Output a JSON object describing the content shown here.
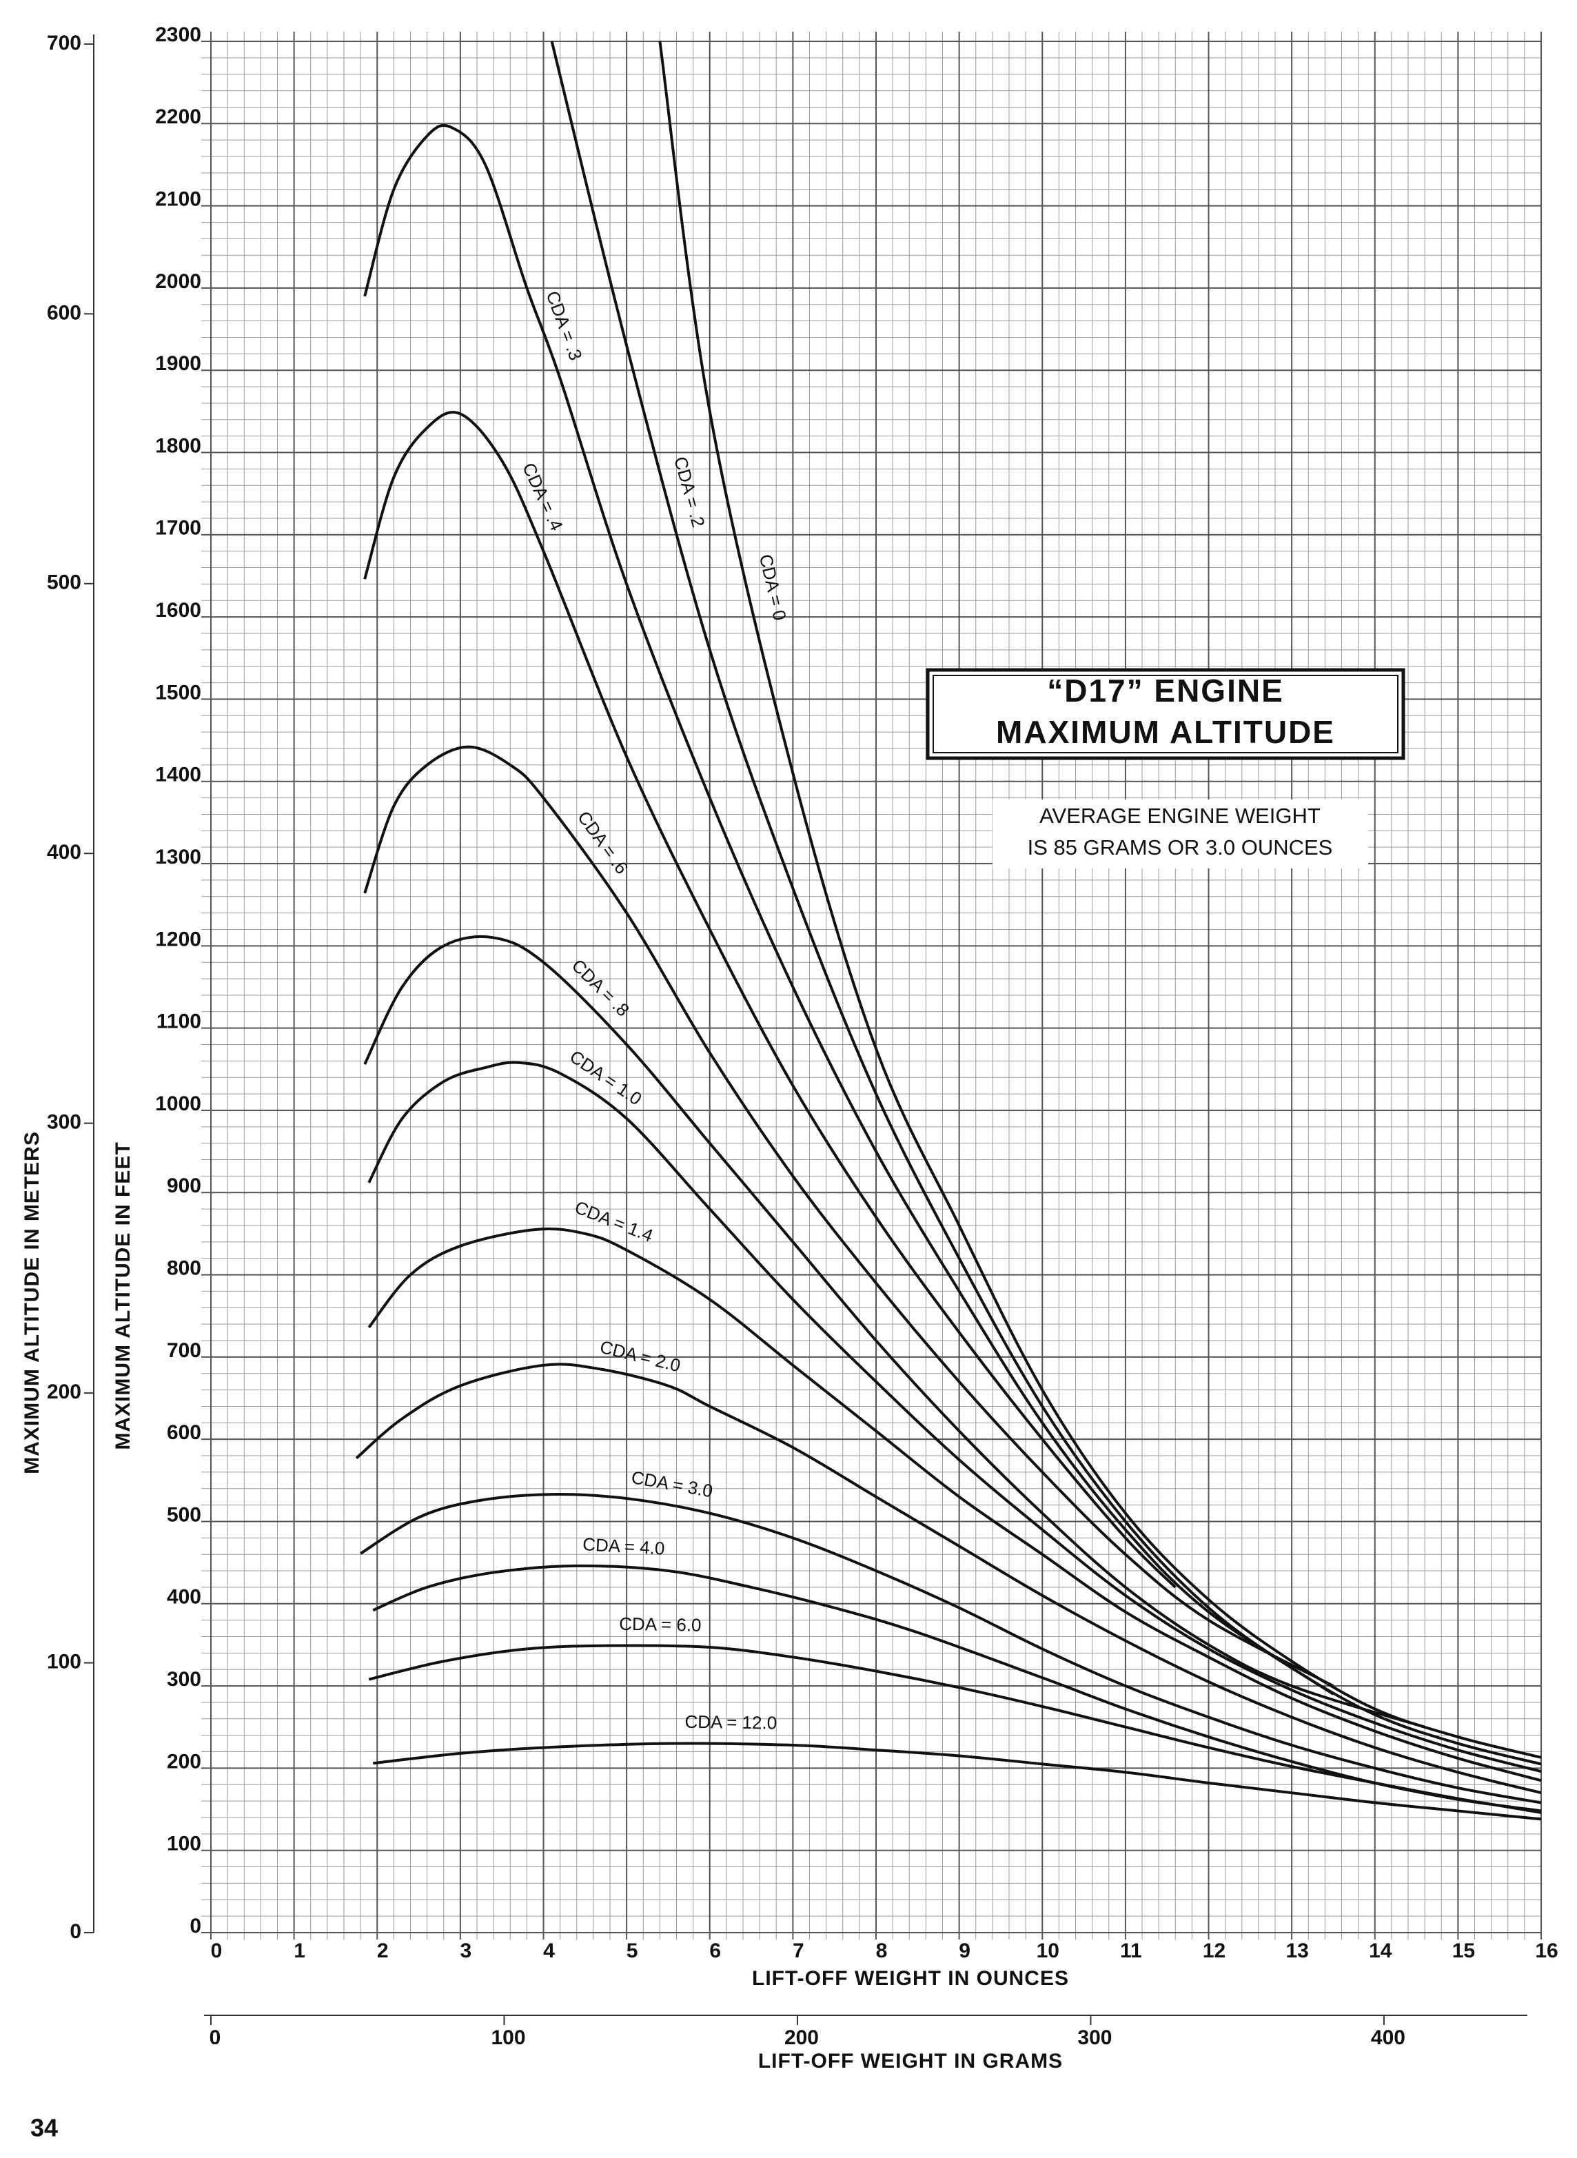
{
  "page_number": "34",
  "chart_data": {
    "type": "line",
    "title_lines": [
      "“D17” ENGINE",
      "MAXIMUM ALTITUDE"
    ],
    "annotation_lines": [
      "AVERAGE ENGINE WEIGHT",
      "IS 85 GRAMS OR 3.0 OUNCES"
    ],
    "x_label": "LIFT-OFF WEIGHT IN OUNCES",
    "x2_label": "LIFT-OFF WEIGHT IN GRAMS",
    "y_label": "MAXIMUM ALTITUDE IN FEET",
    "y2_label": "MAXIMUM ALTITUDE IN METERS",
    "xlim": [
      0,
      16
    ],
    "xticks": [
      0,
      1,
      2,
      3,
      4,
      5,
      6,
      7,
      8,
      9,
      10,
      11,
      12,
      13,
      14,
      15,
      16
    ],
    "ylim": [
      0,
      2300
    ],
    "yticks": [
      0,
      100,
      200,
      300,
      400,
      500,
      600,
      700,
      800,
      900,
      1000,
      1100,
      1200,
      1300,
      1400,
      1500,
      1600,
      1700,
      1800,
      1900,
      2000,
      2100,
      2200,
      2300
    ],
    "x2lim": [
      0,
      453.6
    ],
    "x2ticks": [
      0,
      100,
      200,
      300,
      400
    ],
    "y2lim": [
      0,
      701
    ],
    "y2ticks": [
      0,
      100,
      200,
      300,
      400,
      500,
      600,
      700
    ],
    "grid": true,
    "series": [
      {
        "name": "CDA = 0",
        "color": "#111111",
        "x": [
          5.4,
          6,
          7,
          8,
          9,
          10,
          11,
          12,
          13,
          14,
          15,
          16
        ],
        "values": [
          2300,
          1850,
          1410,
          1075,
          860,
          660,
          510,
          405,
          330,
          272,
          238,
          213
        ]
      },
      {
        "name": "CDA = .2",
        "color": "#111111",
        "x": [
          4.1,
          5,
          6,
          7,
          8,
          9,
          10,
          11,
          12,
          13,
          14,
          15,
          16
        ],
        "values": [
          2300,
          1930,
          1560,
          1270,
          1020,
          820,
          640,
          500,
          395,
          322,
          265,
          230,
          205
        ]
      },
      {
        "name": "CDA = .3",
        "color": "#111111",
        "x": [
          1.85,
          2.2,
          2.6,
          2.9,
          3.3,
          3.8,
          4.2,
          5,
          6,
          7,
          8,
          9,
          10,
          11,
          12,
          13.5
        ],
        "values": [
          1990,
          2120,
          2185,
          2195,
          2150,
          2000,
          1890,
          1640,
          1380,
          1150,
          950,
          780,
          620,
          490,
          390,
          290
        ]
      },
      {
        "name": "CDA = .4",
        "color": "#111111",
        "x": [
          1.85,
          2.2,
          2.6,
          3,
          3.5,
          4,
          5,
          6,
          7,
          8,
          9,
          10,
          11,
          11.6
        ],
        "values": [
          1646,
          1770,
          1830,
          1847,
          1790,
          1680,
          1430,
          1220,
          1030,
          870,
          730,
          600,
          480,
          420
        ]
      },
      {
        "name": "CDA = .6",
        "color": "#111111",
        "x": [
          1.85,
          2.2,
          2.6,
          3.1,
          3.6,
          4,
          5,
          6,
          7,
          8,
          9,
          10,
          11,
          12,
          13.5
        ],
        "values": [
          1264,
          1370,
          1420,
          1442,
          1420,
          1380,
          1240,
          1070,
          920,
          790,
          670,
          560,
          460,
          380,
          300
        ]
      },
      {
        "name": "CDA = .8",
        "color": "#111111",
        "x": [
          1.85,
          2.3,
          2.8,
          3.4,
          4,
          5,
          6,
          7,
          8,
          9,
          10,
          11,
          12,
          13,
          14.6
        ],
        "values": [
          1056,
          1150,
          1200,
          1210,
          1180,
          1080,
          960,
          840,
          720,
          610,
          510,
          420,
          350,
          300,
          250
        ]
      },
      {
        "name": "CDA = 1.0",
        "color": "#111111",
        "x": [
          1.9,
          2.3,
          2.8,
          3.3,
          3.7,
          4.2,
          5,
          6,
          7,
          8,
          9,
          10,
          11,
          12,
          13,
          14,
          15,
          16
        ],
        "values": [
          912,
          990,
          1035,
          1052,
          1058,
          1045,
          990,
          880,
          770,
          670,
          575,
          490,
          410,
          345,
          295,
          255,
          222,
          196
        ]
      },
      {
        "name": "CDA = 1.4",
        "color": "#111111",
        "x": [
          1.9,
          2.4,
          3,
          3.9,
          4.5,
          5,
          6,
          7,
          8,
          9,
          10,
          11,
          12,
          13,
          14,
          15,
          16
        ],
        "values": [
          736,
          800,
          835,
          855,
          850,
          830,
          770,
          690,
          610,
          530,
          460,
          390,
          335,
          285,
          245,
          212,
          185
        ]
      },
      {
        "name": "CDA = 2.0",
        "color": "#111111",
        "x": [
          1.75,
          2.3,
          3,
          4,
          4.7,
          5.5,
          6,
          7,
          8,
          9,
          10,
          11,
          12,
          13,
          14,
          15,
          16
        ],
        "values": [
          577,
          625,
          665,
          690,
          685,
          665,
          640,
          590,
          530,
          470,
          410,
          355,
          305,
          262,
          225,
          195,
          170
        ]
      },
      {
        "name": "CDA = 3.0",
        "color": "#111111",
        "x": [
          1.8,
          2.5,
          3.2,
          4.1,
          5,
          6,
          7,
          8,
          9,
          10,
          11,
          12,
          13,
          14,
          15,
          16
        ],
        "values": [
          461,
          505,
          525,
          533,
          528,
          510,
          480,
          440,
          395,
          345,
          300,
          262,
          228,
          200,
          176,
          158
        ]
      },
      {
        "name": "CDA = 4.0",
        "color": "#111111",
        "x": [
          1.95,
          2.6,
          3.4,
          4.4,
          5.5,
          6.5,
          7.5,
          8.5,
          10,
          11,
          12,
          13,
          14,
          15,
          16
        ],
        "values": [
          392,
          420,
          438,
          446,
          440,
          420,
          395,
          365,
          310,
          272,
          238,
          208,
          182,
          162,
          148
        ]
      },
      {
        "name": "CDA = 6.0",
        "color": "#111111",
        "x": [
          1.9,
          2.8,
          3.8,
          4.8,
          6,
          7,
          8,
          9,
          10,
          11,
          12,
          13,
          14,
          15,
          16
        ],
        "values": [
          308,
          330,
          345,
          349,
          347,
          335,
          318,
          298,
          275,
          250,
          225,
          202,
          182,
          163,
          146
        ]
      },
      {
        "name": "CDA = 12.0",
        "color": "#111111",
        "x": [
          1.95,
          3,
          4,
          5.5,
          7,
          8,
          9,
          10,
          11,
          12,
          13,
          14,
          15,
          16
        ],
        "values": [
          206,
          218,
          225,
          230,
          228,
          222,
          215,
          205,
          195,
          182,
          170,
          158,
          148,
          138
        ]
      }
    ]
  }
}
